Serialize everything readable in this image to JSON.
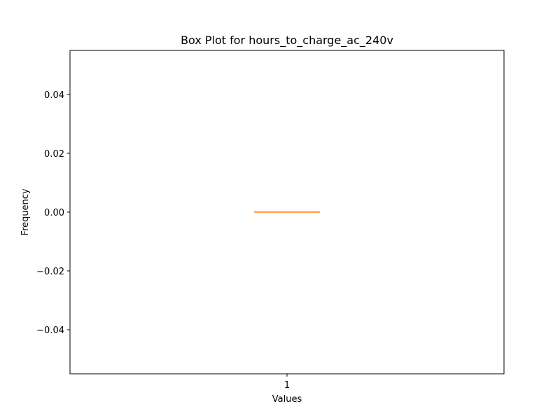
{
  "chart_data": {
    "type": "box",
    "title": "Box Plot for hours_to_charge_ac_240v",
    "xlabel": "Values",
    "ylabel": "Frequency",
    "categories": [
      "1"
    ],
    "ylim": [
      -0.055,
      0.055
    ],
    "yticks": [
      -0.04,
      -0.02,
      0.0,
      0.02,
      0.04
    ],
    "ytick_labels": [
      "−0.04",
      "−0.02",
      "0.00",
      "0.02",
      "0.04"
    ],
    "boxes": [
      {
        "category": "1",
        "min": 0,
        "q1": 0,
        "median": 0,
        "q3": 0,
        "max": 0
      }
    ],
    "grid": false,
    "legend": "none",
    "colors": {
      "box": "#1f77b4",
      "median": "#ff7f0e",
      "axis": "#000000"
    }
  }
}
